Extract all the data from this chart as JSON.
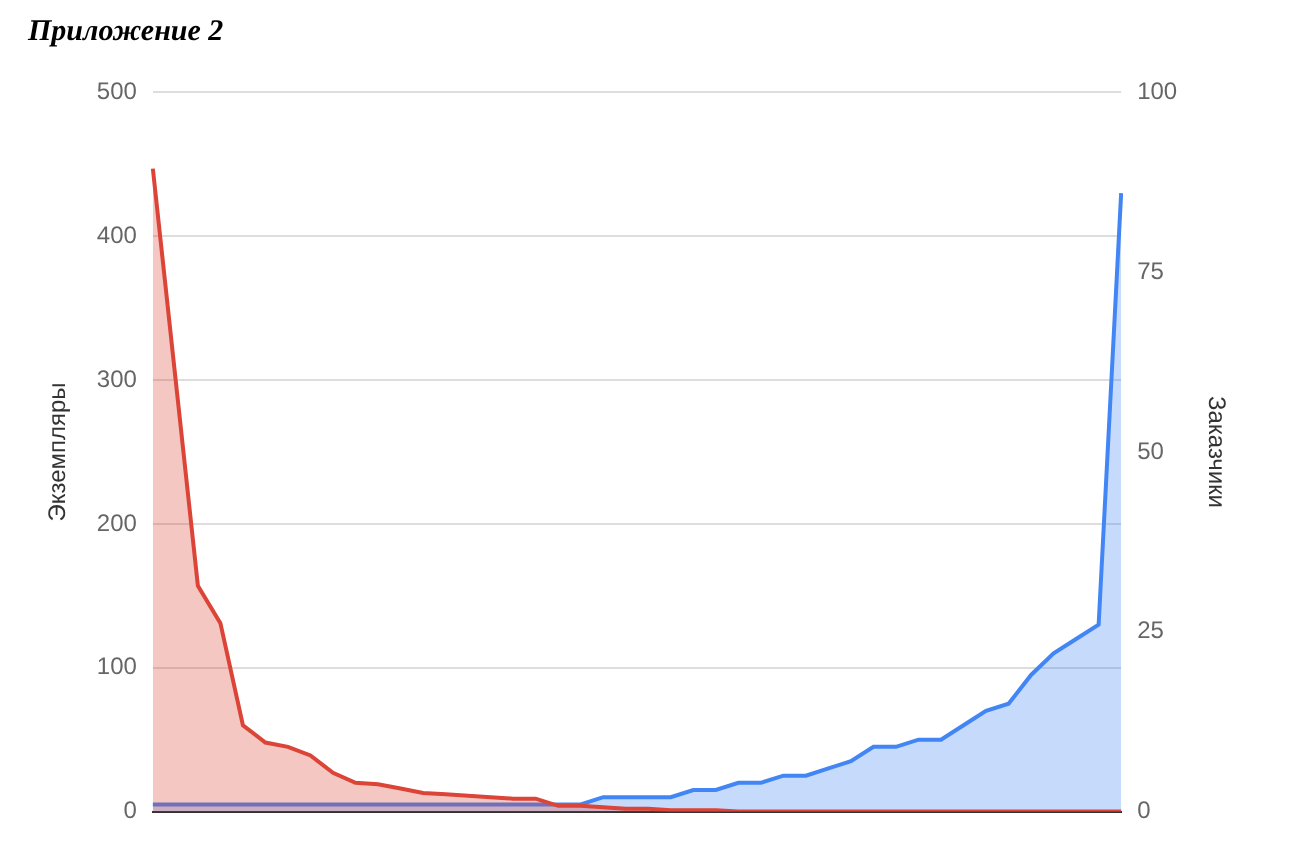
{
  "chart_data": {
    "type": "area",
    "title": "Приложение 2",
    "ylabel": "Экземпляры",
    "y2label": "Заказчики",
    "categories": [
      null,
      null,
      null,
      null,
      null,
      null,
      null,
      null,
      null,
      null,
      null,
      null,
      null,
      null,
      null,
      null,
      null,
      null,
      null,
      null,
      null,
      null,
      null,
      null,
      null,
      null,
      null,
      null,
      null,
      null,
      null,
      null,
      null,
      null,
      null,
      null,
      null,
      null,
      null,
      null,
      null,
      null,
      null,
      null
    ],
    "series": [
      {
        "color": "#db4437",
        "values": [
          447,
          302,
          157,
          131,
          60,
          48,
          45,
          39,
          27,
          20,
          19,
          16,
          13,
          12,
          11,
          10,
          9,
          9,
          4,
          4,
          3,
          2,
          2,
          1,
          1,
          1,
          0,
          0,
          0,
          0,
          0,
          0,
          0,
          0,
          0,
          0,
          0,
          0,
          0,
          0,
          0,
          0,
          0,
          0
        ]
      },
      {
        "color": "#4285f4",
        "axis": "y2",
        "values": [
          1,
          1,
          1,
          1,
          1,
          1,
          1,
          1,
          1,
          1,
          1,
          1,
          1,
          1,
          1,
          1,
          1,
          1,
          1,
          1,
          2,
          2,
          2,
          2,
          3,
          3,
          4,
          4,
          5,
          5,
          6,
          7,
          9,
          9,
          10,
          10,
          12,
          14,
          15,
          19,
          22,
          24,
          26,
          86
        ]
      }
    ],
    "ylim": [
      0,
      500
    ],
    "yticks": [
      0,
      100,
      200,
      300,
      400,
      500
    ],
    "y2lim": [
      0,
      100
    ],
    "y2ticks": [
      0,
      25,
      50,
      75,
      100
    ],
    "grid": "y",
    "legend": false
  }
}
